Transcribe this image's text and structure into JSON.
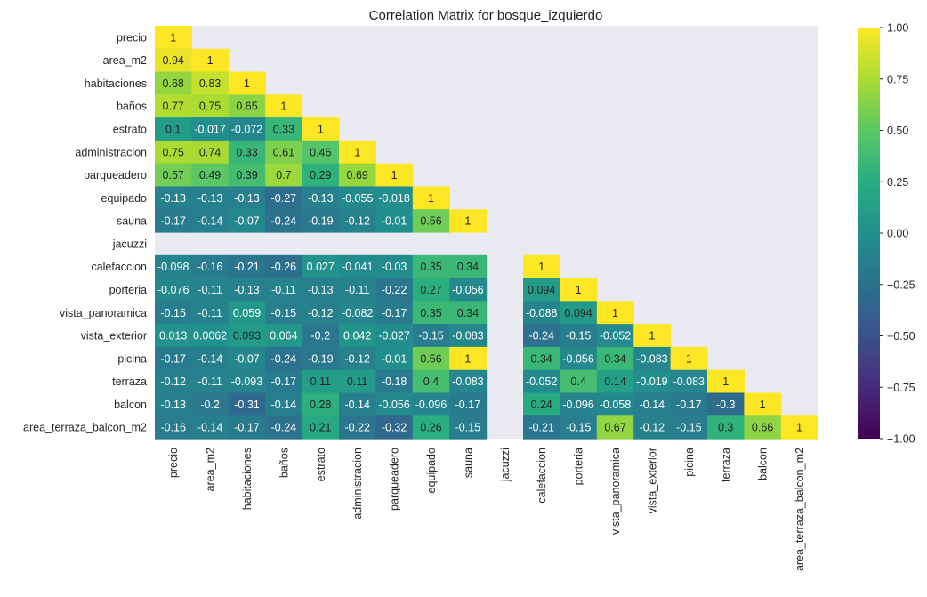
{
  "chart_data": {
    "type": "heatmap",
    "title": "Correlation Matrix for bosque_izquierdo",
    "labels": [
      "precio",
      "area_m2",
      "habitaciones",
      "baños",
      "estrato",
      "administracion",
      "parqueadero",
      "equipado",
      "sauna",
      "jacuzzi",
      "calefaccion",
      "porteria",
      "vista_panoramica",
      "vista_exterior",
      "picina",
      "terraza",
      "balcon",
      "area_terraza_balcon_m2"
    ],
    "mask": "upper-triangle",
    "values": [
      [
        "1"
      ],
      [
        "0.94",
        "1"
      ],
      [
        "0.68",
        "0.83",
        "1"
      ],
      [
        "0.77",
        "0.75",
        "0.65",
        "1"
      ],
      [
        "0.1",
        "-0.017",
        "-0.072",
        "0.33",
        "1"
      ],
      [
        "0.75",
        "0.74",
        "0.33",
        "0.61",
        "0.46",
        "1"
      ],
      [
        "0.57",
        "0.49",
        "0.39",
        "0.7",
        "0.29",
        "0.69",
        "1"
      ],
      [
        "-0.13",
        "-0.13",
        "-0.13",
        "-0.27",
        "-0.13",
        "-0.055",
        "-0.018",
        "1"
      ],
      [
        "-0.17",
        "-0.14",
        "-0.07",
        "-0.24",
        "-0.19",
        "-0.12",
        "-0.01",
        "0.56",
        "1"
      ],
      [
        null,
        null,
        null,
        null,
        null,
        null,
        null,
        null,
        null,
        null
      ],
      [
        "-0.098",
        "-0.16",
        "-0.21",
        "-0.26",
        "0.027",
        "-0.041",
        "-0.03",
        "0.35",
        "0.34",
        null,
        "1"
      ],
      [
        "-0.076",
        "-0.11",
        "-0.13",
        "-0.11",
        "-0.13",
        "-0.11",
        "-0.22",
        "0.27",
        "-0.056",
        null,
        "0.094",
        "1"
      ],
      [
        "-0.15",
        "-0.11",
        "0.059",
        "-0.15",
        "-0.12",
        "-0.082",
        "-0.17",
        "0.35",
        "0.34",
        null,
        "-0.088",
        "0.094",
        "1"
      ],
      [
        "0.013",
        "0.0062",
        "0.093",
        "0.064",
        "-0.2",
        "0.042",
        "-0.027",
        "-0.15",
        "-0.083",
        null,
        "-0.24",
        "-0.15",
        "-0.052",
        "1"
      ],
      [
        "-0.17",
        "-0.14",
        "-0.07",
        "-0.24",
        "-0.19",
        "-0.12",
        "-0.01",
        "0.56",
        "1",
        null,
        "0.34",
        "-0.056",
        "0.34",
        "-0.083",
        "1"
      ],
      [
        "-0.12",
        "-0.11",
        "-0.093",
        "-0.17",
        "0.11",
        "0.11",
        "-0.18",
        "0.4",
        "-0.083",
        null,
        "-0.052",
        "0.4",
        "0.14",
        "-0.019",
        "-0.083",
        "1"
      ],
      [
        "-0.13",
        "-0.2",
        "-0.31",
        "-0.14",
        "0.28",
        "-0.14",
        "-0.056",
        "-0.096",
        "-0.17",
        null,
        "0.24",
        "-0.096",
        "-0.058",
        "-0.14",
        "-0.17",
        "-0.3",
        "1"
      ],
      [
        "-0.16",
        "-0.14",
        "-0.17",
        "-0.24",
        "0.21",
        "-0.22",
        "-0.32",
        "0.26",
        "-0.15",
        null,
        "-0.21",
        "-0.15",
        "0.67",
        "-0.12",
        "-0.15",
        "0.3",
        "0.66",
        "1"
      ]
    ],
    "colorbar": {
      "min": -1.0,
      "max": 1.0,
      "colormap": "viridis",
      "ticks": [
        "1.00",
        "0.75",
        "0.50",
        "0.25",
        "0.00",
        "−0.25",
        "−0.50",
        "−0.75",
        "−1.00"
      ]
    },
    "background_color": "#eaeaf2",
    "grid": false,
    "xlabel": "",
    "ylabel": ""
  }
}
